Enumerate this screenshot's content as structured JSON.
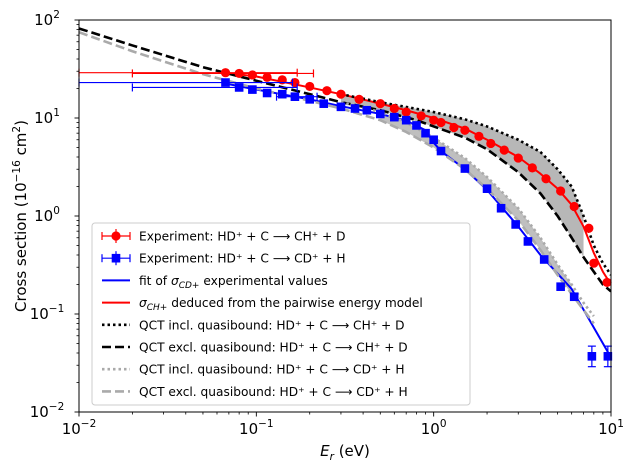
{
  "chart_data": {
    "type": "scatter",
    "xscale": "log",
    "yscale": "log",
    "xlim": [
      0.01,
      10
    ],
    "ylim": [
      0.01,
      100
    ],
    "xlabel": {
      "main": "E",
      "sub": "r",
      "unit": " (eV)"
    },
    "ylabel": {
      "main": "Cross section (10",
      "sup": "−16",
      "mid": " cm",
      "sup2": "2",
      "end": ")"
    },
    "xticks": [
      {
        "v": 0.01,
        "base": "10",
        "exp": "−2"
      },
      {
        "v": 0.1,
        "base": "10",
        "exp": "−1"
      },
      {
        "v": 1,
        "base": "10",
        "exp": "0"
      },
      {
        "v": 10,
        "base": "10",
        "exp": "1"
      }
    ],
    "yticks": [
      {
        "v": 0.01,
        "base": "10",
        "exp": "−2"
      },
      {
        "v": 0.1,
        "base": "10",
        "exp": "−1"
      },
      {
        "v": 1,
        "base": "10",
        "exp": "0"
      },
      {
        "v": 10,
        "base": "10",
        "exp": "1"
      },
      {
        "v": 100,
        "base": "10",
        "exp": "2"
      }
    ],
    "legend_position": "lower-left",
    "legend": [
      {
        "kind": "marker-circle",
        "color": "#ff0000",
        "label": "Experiment: HD⁺ + C ⟶ CH⁺ + D"
      },
      {
        "kind": "marker-square",
        "color": "#0000ff",
        "label": "Experiment: HD⁺ + C ⟶ CD⁺ + H"
      },
      {
        "kind": "line-solid",
        "color": "#0000ff",
        "label_parts": [
          "fit of ",
          "σ",
          "CD+",
          " experimental values"
        ]
      },
      {
        "kind": "line-solid",
        "color": "#ff0000",
        "label_parts": [
          "",
          "σ",
          "CH+",
          "  deduced from the pairwise energy model"
        ]
      },
      {
        "kind": "line-dotted",
        "color": "#000000",
        "label": "QCT incl. quasibound: HD⁺ + C ⟶ CH⁺ + D"
      },
      {
        "kind": "line-dashed",
        "color": "#000000",
        "label": "QCT excl. quasibound: HD⁺ + C ⟶ CH⁺ + D"
      },
      {
        "kind": "line-dotted",
        "color": "#aaaaaa",
        "label": "QCT incl. quasibound: HD⁺ + C ⟶ CD⁺ + H"
      },
      {
        "kind": "line-dashed",
        "color": "#aaaaaa",
        "label": "QCT excl. quasibound: HD⁺ + C ⟶ CD⁺ + H"
      }
    ],
    "series": [
      {
        "name": "Experiment: HD⁺ + C ⟶ CH⁺ + D",
        "style": "circle",
        "color": "#ff0000",
        "points": [
          {
            "x": 0.067,
            "y": 29,
            "xerr": [
              0.01,
              0.17
            ]
          },
          {
            "x": 0.08,
            "y": 28.5,
            "xerr": [
              0.02,
              0.21
            ]
          },
          {
            "x": 0.095,
            "y": 27.5
          },
          {
            "x": 0.115,
            "y": 26
          },
          {
            "x": 0.14,
            "y": 24.5
          },
          {
            "x": 0.165,
            "y": 23
          },
          {
            "x": 0.2,
            "y": 21
          },
          {
            "x": 0.25,
            "y": 19
          },
          {
            "x": 0.3,
            "y": 17.5
          },
          {
            "x": 0.38,
            "y": 15.5
          },
          {
            "x": 0.5,
            "y": 14
          },
          {
            "x": 0.6,
            "y": 12.5
          },
          {
            "x": 0.7,
            "y": 11.5
          },
          {
            "x": 0.85,
            "y": 10.5
          },
          {
            "x": 1.0,
            "y": 9.5
          },
          {
            "x": 1.1,
            "y": 9
          },
          {
            "x": 1.3,
            "y": 8
          },
          {
            "x": 1.5,
            "y": 7.5
          },
          {
            "x": 1.8,
            "y": 6.5
          },
          {
            "x": 2.1,
            "y": 5.5
          },
          {
            "x": 2.5,
            "y": 4.7
          },
          {
            "x": 3.0,
            "y": 3.9
          },
          {
            "x": 3.6,
            "y": 3.1
          },
          {
            "x": 4.3,
            "y": 2.4
          },
          {
            "x": 5.2,
            "y": 1.8
          },
          {
            "x": 6.2,
            "y": 1.25
          },
          {
            "x": 7.5,
            "y": 0.75
          },
          {
            "x": 8.0,
            "y": 0.33
          },
          {
            "x": 9.5,
            "y": 0.21
          }
        ]
      },
      {
        "name": "Experiment: HD⁺ + C ⟶ CD⁺ + H",
        "style": "square",
        "color": "#0000ff",
        "points": [
          {
            "x": 0.067,
            "y": 23,
            "xerr": [
              0.01,
              0.16
            ]
          },
          {
            "x": 0.08,
            "y": 20.5,
            "xerr": [
              0.02,
              0.17
            ]
          },
          {
            "x": 0.095,
            "y": 19.5
          },
          {
            "x": 0.115,
            "y": 18
          },
          {
            "x": 0.14,
            "y": 17.5
          },
          {
            "x": 0.165,
            "y": 16.5,
            "xerr": [
              0.13,
              0.22
            ]
          },
          {
            "x": 0.2,
            "y": 15.5
          },
          {
            "x": 0.24,
            "y": 14
          },
          {
            "x": 0.3,
            "y": 13
          },
          {
            "x": 0.36,
            "y": 12.5
          },
          {
            "x": 0.42,
            "y": 12
          },
          {
            "x": 0.5,
            "y": 11
          },
          {
            "x": 0.6,
            "y": 10.2
          },
          {
            "x": 0.7,
            "y": 9.5
          },
          {
            "x": 0.8,
            "y": 8.4
          },
          {
            "x": 0.9,
            "y": 7
          },
          {
            "x": 1.0,
            "y": 6
          },
          {
            "x": 1.1,
            "y": 4.6
          },
          {
            "x": 1.5,
            "y": 3.05
          },
          {
            "x": 2.0,
            "y": 1.9
          },
          {
            "x": 2.4,
            "y": 1.2
          },
          {
            "x": 2.9,
            "y": 0.82
          },
          {
            "x": 3.4,
            "y": 0.55
          },
          {
            "x": 4.2,
            "y": 0.36
          },
          {
            "x": 5.2,
            "y": 0.19
          },
          {
            "x": 6.2,
            "y": 0.15
          },
          {
            "x": 7.8,
            "y": 0.037,
            "yerr": [
              0.029,
              0.047
            ]
          },
          {
            "x": 9.6,
            "y": 0.037,
            "yerr": [
              0.029,
              0.047
            ]
          }
        ]
      },
      {
        "name": "fit of σCD+ experimental values",
        "style": "line-solid",
        "color": "#0000ff",
        "points": [
          {
            "x": 0.067,
            "y": 22.5
          },
          {
            "x": 0.1,
            "y": 19.5
          },
          {
            "x": 0.2,
            "y": 15.5
          },
          {
            "x": 0.3,
            "y": 13.2
          },
          {
            "x": 0.5,
            "y": 11
          },
          {
            "x": 0.7,
            "y": 9.4
          },
          {
            "x": 0.9,
            "y": 7.5
          },
          {
            "x": 1.0,
            "y": 5.6
          },
          {
            "x": 1.1,
            "y": 4.6
          },
          {
            "x": 1.5,
            "y": 3.0
          },
          {
            "x": 2.0,
            "y": 1.85
          },
          {
            "x": 3.0,
            "y": 0.78
          },
          {
            "x": 4.0,
            "y": 0.4
          },
          {
            "x": 6.0,
            "y": 0.18
          },
          {
            "x": 10.0,
            "y": 0.036
          }
        ]
      },
      {
        "name": "σCH+ deduced from the pairwise energy model",
        "style": "line-solid",
        "color": "#ff0000",
        "points": [
          {
            "x": 0.067,
            "y": 29
          },
          {
            "x": 0.1,
            "y": 26.5
          },
          {
            "x": 0.2,
            "y": 20.5
          },
          {
            "x": 0.3,
            "y": 17.5
          },
          {
            "x": 0.5,
            "y": 14
          },
          {
            "x": 0.7,
            "y": 12
          },
          {
            "x": 1.0,
            "y": 10
          },
          {
            "x": 1.5,
            "y": 7.8
          },
          {
            "x": 2.0,
            "y": 6
          },
          {
            "x": 3.0,
            "y": 4.0
          },
          {
            "x": 4.0,
            "y": 2.7
          },
          {
            "x": 5.0,
            "y": 1.9
          },
          {
            "x": 6.0,
            "y": 1.3
          },
          {
            "x": 7.0,
            "y": 0.78
          },
          {
            "x": 8.0,
            "y": 0.42
          },
          {
            "x": 9.0,
            "y": 0.27
          },
          {
            "x": 10.0,
            "y": 0.2
          }
        ]
      },
      {
        "name": "QCT incl. quasibound: HD⁺ + C ⟶ CH⁺ + D",
        "style": "line-dotted",
        "color": "#000000",
        "points": [
          {
            "x": 0.3,
            "y": 17.5
          },
          {
            "x": 0.5,
            "y": 14.5
          },
          {
            "x": 1.0,
            "y": 11.5
          },
          {
            "x": 1.5,
            "y": 9.7
          },
          {
            "x": 2.0,
            "y": 8.2
          },
          {
            "x": 3.0,
            "y": 6.0
          },
          {
            "x": 4.0,
            "y": 4.5
          },
          {
            "x": 5.0,
            "y": 3.0
          },
          {
            "x": 6.0,
            "y": 2.0
          },
          {
            "x": 7.0,
            "y": 1.0
          },
          {
            "x": 8.0,
            "y": 0.5
          },
          {
            "x": 9.0,
            "y": 0.33
          },
          {
            "x": 10.0,
            "y": 0.25
          }
        ]
      },
      {
        "name": "QCT excl. quasibound: HD⁺ + C ⟶ CH⁺ + D",
        "style": "line-dashed",
        "color": "#000000",
        "points": [
          {
            "x": 0.01,
            "y": 82
          },
          {
            "x": 0.02,
            "y": 55
          },
          {
            "x": 0.05,
            "y": 33
          },
          {
            "x": 0.1,
            "y": 24
          },
          {
            "x": 0.2,
            "y": 17.5
          },
          {
            "x": 0.3,
            "y": 14.5
          },
          {
            "x": 0.5,
            "y": 12
          },
          {
            "x": 0.8,
            "y": 9.5
          },
          {
            "x": 1.0,
            "y": 8.2
          },
          {
            "x": 1.5,
            "y": 6.3
          },
          {
            "x": 2.0,
            "y": 4.8
          },
          {
            "x": 3.0,
            "y": 2.8
          },
          {
            "x": 4.0,
            "y": 1.7
          },
          {
            "x": 5.0,
            "y": 1.0
          },
          {
            "x": 6.0,
            "y": 0.6
          },
          {
            "x": 7.0,
            "y": 0.38
          },
          {
            "x": 8.0,
            "y": 0.27
          },
          {
            "x": 9.0,
            "y": 0.2
          },
          {
            "x": 10.0,
            "y": 0.17
          }
        ]
      },
      {
        "name": "QCT incl. quasibound: HD⁺ + C ⟶ CD⁺ + H",
        "style": "line-dotted",
        "color": "#aaaaaa",
        "points": [
          {
            "x": 0.3,
            "y": 14.5
          },
          {
            "x": 0.5,
            "y": 11.5
          },
          {
            "x": 0.7,
            "y": 9.0
          },
          {
            "x": 1.0,
            "y": 6.3
          },
          {
            "x": 1.5,
            "y": 3.9
          },
          {
            "x": 2.0,
            "y": 2.5
          },
          {
            "x": 3.0,
            "y": 1.2
          },
          {
            "x": 4.0,
            "y": 0.6
          },
          {
            "x": 5.0,
            "y": 0.32
          },
          {
            "x": 6.0,
            "y": 0.2
          },
          {
            "x": 7.0,
            "y": 0.13
          },
          {
            "x": 8.0,
            "y": 0.095
          }
        ]
      },
      {
        "name": "QCT excl. quasibound: HD⁺ + C ⟶ CD⁺ + H",
        "style": "line-dashed",
        "color": "#aaaaaa",
        "points": [
          {
            "x": 0.01,
            "y": 75
          },
          {
            "x": 0.02,
            "y": 48
          },
          {
            "x": 0.05,
            "y": 28
          },
          {
            "x": 0.1,
            "y": 20
          },
          {
            "x": 0.2,
            "y": 15
          },
          {
            "x": 0.3,
            "y": 12.5
          },
          {
            "x": 0.5,
            "y": 9.5
          },
          {
            "x": 0.7,
            "y": 7.2
          },
          {
            "x": 1.0,
            "y": 5.0
          },
          {
            "x": 1.5,
            "y": 3.0
          },
          {
            "x": 2.0,
            "y": 1.9
          },
          {
            "x": 3.0,
            "y": 0.9
          },
          {
            "x": 4.0,
            "y": 0.45
          },
          {
            "x": 5.0,
            "y": 0.25
          },
          {
            "x": 6.0,
            "y": 0.16
          },
          {
            "x": 7.0,
            "y": 0.11
          },
          {
            "x": 8.0,
            "y": 0.08
          }
        ]
      }
    ],
    "bands": [
      {
        "name": "QCT CH+ band",
        "color": "#aaaaaa",
        "upper": [
          {
            "x": 0.3,
            "y": 17.5
          },
          {
            "x": 0.5,
            "y": 14.5
          },
          {
            "x": 1.0,
            "y": 11.5
          },
          {
            "x": 1.5,
            "y": 9.7
          },
          {
            "x": 2.0,
            "y": 8.2
          },
          {
            "x": 3.0,
            "y": 6.0
          },
          {
            "x": 4.0,
            "y": 4.5
          },
          {
            "x": 5.0,
            "y": 3.0
          },
          {
            "x": 6.0,
            "y": 2.0
          },
          {
            "x": 7.0,
            "y": 1.0
          }
        ],
        "lower": [
          {
            "x": 0.3,
            "y": 14.5
          },
          {
            "x": 0.5,
            "y": 12
          },
          {
            "x": 1.0,
            "y": 8.2
          },
          {
            "x": 1.5,
            "y": 6.3
          },
          {
            "x": 2.0,
            "y": 4.8
          },
          {
            "x": 3.0,
            "y": 2.8
          },
          {
            "x": 4.0,
            "y": 1.7
          },
          {
            "x": 5.0,
            "y": 1.0
          },
          {
            "x": 6.0,
            "y": 0.6
          },
          {
            "x": 7.0,
            "y": 0.38
          }
        ]
      },
      {
        "name": "QCT CD+ band",
        "color": "#b4b4b4",
        "upper": [
          {
            "x": 0.5,
            "y": 11.5
          },
          {
            "x": 0.7,
            "y": 9.0
          },
          {
            "x": 1.0,
            "y": 6.3
          },
          {
            "x": 1.5,
            "y": 3.9
          },
          {
            "x": 2.0,
            "y": 2.5
          },
          {
            "x": 3.0,
            "y": 1.2
          },
          {
            "x": 4.0,
            "y": 0.6
          },
          {
            "x": 5.0,
            "y": 0.32
          },
          {
            "x": 6.0,
            "y": 0.2
          }
        ],
        "lower": [
          {
            "x": 0.5,
            "y": 9.5
          },
          {
            "x": 0.7,
            "y": 7.2
          },
          {
            "x": 1.0,
            "y": 5.0
          },
          {
            "x": 1.5,
            "y": 3.0
          },
          {
            "x": 2.0,
            "y": 1.9
          },
          {
            "x": 3.0,
            "y": 0.9
          },
          {
            "x": 4.0,
            "y": 0.45
          },
          {
            "x": 5.0,
            "y": 0.25
          },
          {
            "x": 6.0,
            "y": 0.16
          }
        ]
      }
    ]
  }
}
